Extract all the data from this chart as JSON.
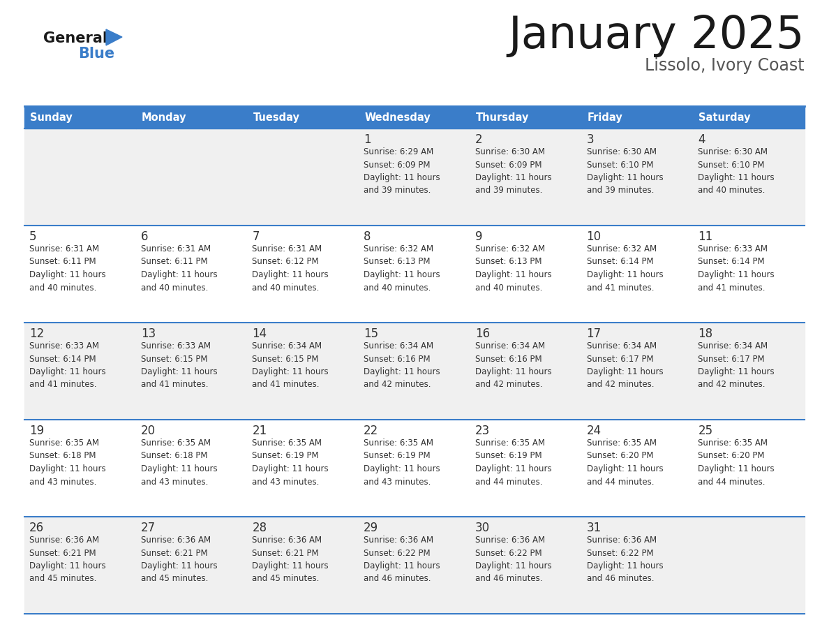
{
  "title": "January 2025",
  "subtitle": "Lissolo, Ivory Coast",
  "days_of_week": [
    "Sunday",
    "Monday",
    "Tuesday",
    "Wednesday",
    "Thursday",
    "Friday",
    "Saturday"
  ],
  "header_bg": "#3A7DC9",
  "header_text": "#FFFFFF",
  "row_bg_odd": "#F0F0F0",
  "row_bg_even": "#FFFFFF",
  "cell_text": "#333333",
  "border_color": "#3A7DC9",
  "title_color": "#1a1a1a",
  "subtitle_color": "#555555",
  "logo_general_color": "#1a1a1a",
  "logo_blue_color": "#3A7DC9",
  "calendar_data": [
    [
      null,
      null,
      null,
      {
        "day": 1,
        "sunrise": "6:29 AM",
        "sunset": "6:09 PM",
        "daylight": "11 hours\nand 39 minutes."
      },
      {
        "day": 2,
        "sunrise": "6:30 AM",
        "sunset": "6:09 PM",
        "daylight": "11 hours\nand 39 minutes."
      },
      {
        "day": 3,
        "sunrise": "6:30 AM",
        "sunset": "6:10 PM",
        "daylight": "11 hours\nand 39 minutes."
      },
      {
        "day": 4,
        "sunrise": "6:30 AM",
        "sunset": "6:10 PM",
        "daylight": "11 hours\nand 40 minutes."
      }
    ],
    [
      {
        "day": 5,
        "sunrise": "6:31 AM",
        "sunset": "6:11 PM",
        "daylight": "11 hours\nand 40 minutes."
      },
      {
        "day": 6,
        "sunrise": "6:31 AM",
        "sunset": "6:11 PM",
        "daylight": "11 hours\nand 40 minutes."
      },
      {
        "day": 7,
        "sunrise": "6:31 AM",
        "sunset": "6:12 PM",
        "daylight": "11 hours\nand 40 minutes."
      },
      {
        "day": 8,
        "sunrise": "6:32 AM",
        "sunset": "6:13 PM",
        "daylight": "11 hours\nand 40 minutes."
      },
      {
        "day": 9,
        "sunrise": "6:32 AM",
        "sunset": "6:13 PM",
        "daylight": "11 hours\nand 40 minutes."
      },
      {
        "day": 10,
        "sunrise": "6:32 AM",
        "sunset": "6:14 PM",
        "daylight": "11 hours\nand 41 minutes."
      },
      {
        "day": 11,
        "sunrise": "6:33 AM",
        "sunset": "6:14 PM",
        "daylight": "11 hours\nand 41 minutes."
      }
    ],
    [
      {
        "day": 12,
        "sunrise": "6:33 AM",
        "sunset": "6:14 PM",
        "daylight": "11 hours\nand 41 minutes."
      },
      {
        "day": 13,
        "sunrise": "6:33 AM",
        "sunset": "6:15 PM",
        "daylight": "11 hours\nand 41 minutes."
      },
      {
        "day": 14,
        "sunrise": "6:34 AM",
        "sunset": "6:15 PM",
        "daylight": "11 hours\nand 41 minutes."
      },
      {
        "day": 15,
        "sunrise": "6:34 AM",
        "sunset": "6:16 PM",
        "daylight": "11 hours\nand 42 minutes."
      },
      {
        "day": 16,
        "sunrise": "6:34 AM",
        "sunset": "6:16 PM",
        "daylight": "11 hours\nand 42 minutes."
      },
      {
        "day": 17,
        "sunrise": "6:34 AM",
        "sunset": "6:17 PM",
        "daylight": "11 hours\nand 42 minutes."
      },
      {
        "day": 18,
        "sunrise": "6:34 AM",
        "sunset": "6:17 PM",
        "daylight": "11 hours\nand 42 minutes."
      }
    ],
    [
      {
        "day": 19,
        "sunrise": "6:35 AM",
        "sunset": "6:18 PM",
        "daylight": "11 hours\nand 43 minutes."
      },
      {
        "day": 20,
        "sunrise": "6:35 AM",
        "sunset": "6:18 PM",
        "daylight": "11 hours\nand 43 minutes."
      },
      {
        "day": 21,
        "sunrise": "6:35 AM",
        "sunset": "6:19 PM",
        "daylight": "11 hours\nand 43 minutes."
      },
      {
        "day": 22,
        "sunrise": "6:35 AM",
        "sunset": "6:19 PM",
        "daylight": "11 hours\nand 43 minutes."
      },
      {
        "day": 23,
        "sunrise": "6:35 AM",
        "sunset": "6:19 PM",
        "daylight": "11 hours\nand 44 minutes."
      },
      {
        "day": 24,
        "sunrise": "6:35 AM",
        "sunset": "6:20 PM",
        "daylight": "11 hours\nand 44 minutes."
      },
      {
        "day": 25,
        "sunrise": "6:35 AM",
        "sunset": "6:20 PM",
        "daylight": "11 hours\nand 44 minutes."
      }
    ],
    [
      {
        "day": 26,
        "sunrise": "6:36 AM",
        "sunset": "6:21 PM",
        "daylight": "11 hours\nand 45 minutes."
      },
      {
        "day": 27,
        "sunrise": "6:36 AM",
        "sunset": "6:21 PM",
        "daylight": "11 hours\nand 45 minutes."
      },
      {
        "day": 28,
        "sunrise": "6:36 AM",
        "sunset": "6:21 PM",
        "daylight": "11 hours\nand 45 minutes."
      },
      {
        "day": 29,
        "sunrise": "6:36 AM",
        "sunset": "6:22 PM",
        "daylight": "11 hours\nand 46 minutes."
      },
      {
        "day": 30,
        "sunrise": "6:36 AM",
        "sunset": "6:22 PM",
        "daylight": "11 hours\nand 46 minutes."
      },
      {
        "day": 31,
        "sunrise": "6:36 AM",
        "sunset": "6:22 PM",
        "daylight": "11 hours\nand 46 minutes."
      },
      null
    ]
  ]
}
